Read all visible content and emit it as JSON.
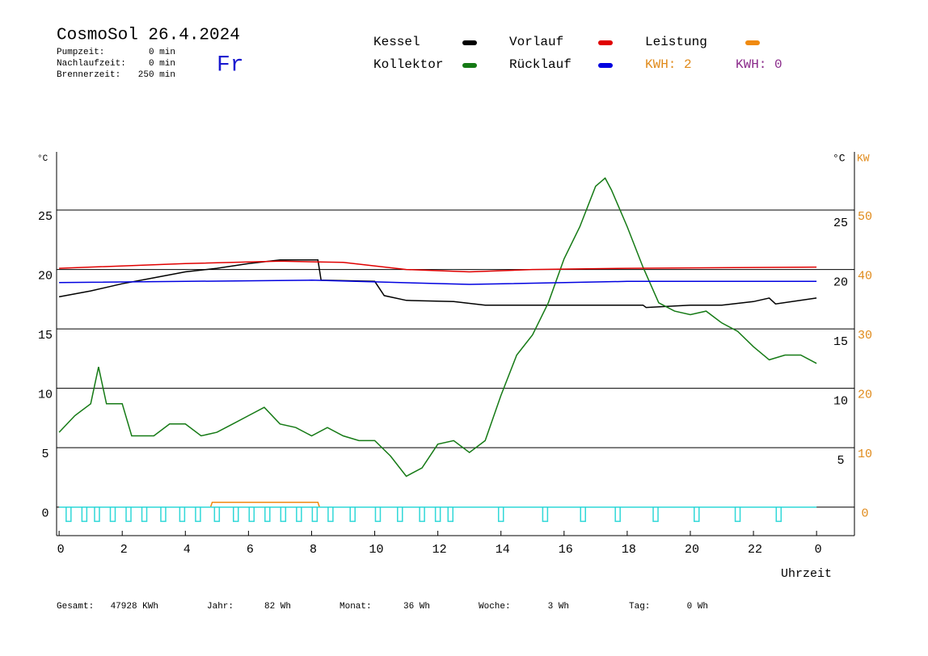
{
  "chart_data": {
    "type": "line",
    "title": "CosmoSol 26.4.2024",
    "info": [
      {
        "label": "Pumpzeit:",
        "value": "0 min"
      },
      {
        "label": "Nachlaufzeit:",
        "value": "0 min"
      },
      {
        "label": "Brennerzeit:",
        "value": "250 min"
      }
    ],
    "day": "Fr",
    "kwh_labels": [
      {
        "text": "KWH: 2",
        "color": "#e08a1a"
      },
      {
        "text": "KWH: 0",
        "color": "#8a2a8a"
      }
    ],
    "y_label": "°C",
    "y2_label_left": "°C",
    "y2_label": "KW",
    "x_label": "Uhrzeit",
    "xlim": [
      -0.08,
      25.2
    ],
    "xticks": [
      0,
      2,
      4,
      6,
      8,
      10,
      12,
      14,
      16,
      18,
      20,
      22,
      {
        "value": 24,
        "label": "0"
      }
    ],
    "ylim": [
      -2.4,
      29.9
    ],
    "yticks": [
      0,
      5,
      10,
      15,
      20,
      25
    ],
    "y2lim": [
      -4.8,
      59.8
    ],
    "y2ticks": [
      0,
      10,
      20,
      30,
      40,
      50
    ],
    "grid": true,
    "series": [
      {
        "name": "Kessel",
        "color": "#000000",
        "x": [
          0,
          1,
          2,
          3,
          4,
          5,
          6,
          7,
          8.2,
          8.3,
          10,
          10.3,
          11,
          12.5,
          13.5,
          16,
          18.5,
          18.6,
          20,
          21,
          22,
          22.5,
          22.7,
          24
        ],
        "values": [
          17.7,
          18.2,
          18.8,
          19.3,
          19.8,
          20.1,
          20.5,
          20.8,
          20.8,
          19.1,
          19.0,
          17.8,
          17.4,
          17.3,
          17.0,
          17.0,
          17.0,
          16.8,
          17.0,
          17.0,
          17.3,
          17.6,
          17.1,
          17.6
        ]
      },
      {
        "name": "Kollektor",
        "color": "#157a15",
        "x": [
          0,
          0.5,
          1,
          1.25,
          1.5,
          2,
          2.3,
          3,
          3.5,
          4,
          4.5,
          5,
          5.5,
          6,
          6.5,
          7,
          7.5,
          8,
          8.5,
          9,
          9.5,
          10,
          10.5,
          11,
          11.5,
          12,
          12.5,
          13,
          13.5,
          14,
          14.5,
          15,
          15.5,
          16,
          16.5,
          17,
          17.3,
          17.5,
          18,
          18.5,
          19,
          19.5,
          20,
          20.5,
          21,
          21.5,
          22,
          22.5,
          23,
          23.5,
          24
        ],
        "values": [
          6.3,
          7.7,
          8.7,
          11.8,
          8.7,
          8.7,
          6.0,
          6.0,
          7.0,
          7.0,
          6.0,
          6.3,
          7.0,
          7.7,
          8.4,
          7.0,
          6.7,
          6.0,
          6.7,
          6.0,
          5.6,
          5.6,
          4.3,
          2.6,
          3.3,
          5.3,
          5.6,
          4.6,
          5.6,
          9.4,
          12.8,
          14.5,
          17.2,
          20.9,
          23.6,
          27.0,
          27.7,
          26.7,
          23.6,
          20.2,
          17.2,
          16.5,
          16.2,
          16.5,
          15.5,
          14.8,
          13.5,
          12.4,
          12.8,
          12.8,
          12.1
        ]
      },
      {
        "name": "Vorlauf",
        "color": "#e00000",
        "x": [
          0,
          4,
          7,
          9,
          11,
          13,
          15,
          18,
          24
        ],
        "values": [
          20.1,
          20.5,
          20.7,
          20.6,
          20.0,
          19.8,
          20.0,
          20.1,
          20.2
        ]
      },
      {
        "name": "Rücklauf",
        "color": "#0000e0",
        "x": [
          0,
          8,
          13,
          18,
          24
        ],
        "values": [
          18.9,
          19.1,
          18.75,
          19.0,
          19.0
        ]
      },
      {
        "name": "Leistung",
        "color": "#f08a10",
        "axis": "y2",
        "x": [
          0,
          4.8,
          4.85,
          8.2,
          8.25,
          24
        ],
        "values": [
          0,
          0,
          0.8,
          0.8,
          0,
          0
        ]
      },
      {
        "color": "#30d8d8",
        "pulse": true,
        "x": [
          0.3,
          0.8,
          1.2,
          1.7,
          2.2,
          2.7,
          3.3,
          3.9,
          4.4,
          5.0,
          5.6,
          6.1,
          6.6,
          7.1,
          7.6,
          8.1,
          8.6,
          9.3,
          10.1,
          10.8,
          11.5,
          12.0,
          12.4,
          14.0,
          15.4,
          16.6,
          17.7,
          18.9,
          20.2,
          21.5,
          22.8
        ],
        "values": [
          -1.2,
          -1.2,
          -1.2,
          -1.2,
          -1.2,
          -1.2,
          -1.2,
          -1.2,
          -1.2,
          -1.2,
          -1.2,
          -1.2,
          -1.2,
          -1.2,
          -1.2,
          -1.2,
          -1.2,
          -1.2,
          -1.2,
          -1.2,
          -1.2,
          -1.2,
          -1.2,
          -1.2,
          -1.2,
          -1.2,
          -1.2,
          -1.2,
          -1.2,
          -1.2,
          -1.2
        ]
      }
    ],
    "footer": [
      {
        "label": "Gesamt:",
        "value": "47928 KWh"
      },
      {
        "label": "Jahr:",
        "value": "82 Wh"
      },
      {
        "label": "Monat:",
        "value": "36 Wh"
      },
      {
        "label": "Woche:",
        "value": "3 Wh"
      },
      {
        "label": "Tag:",
        "value": "0 Wh"
      }
    ]
  }
}
